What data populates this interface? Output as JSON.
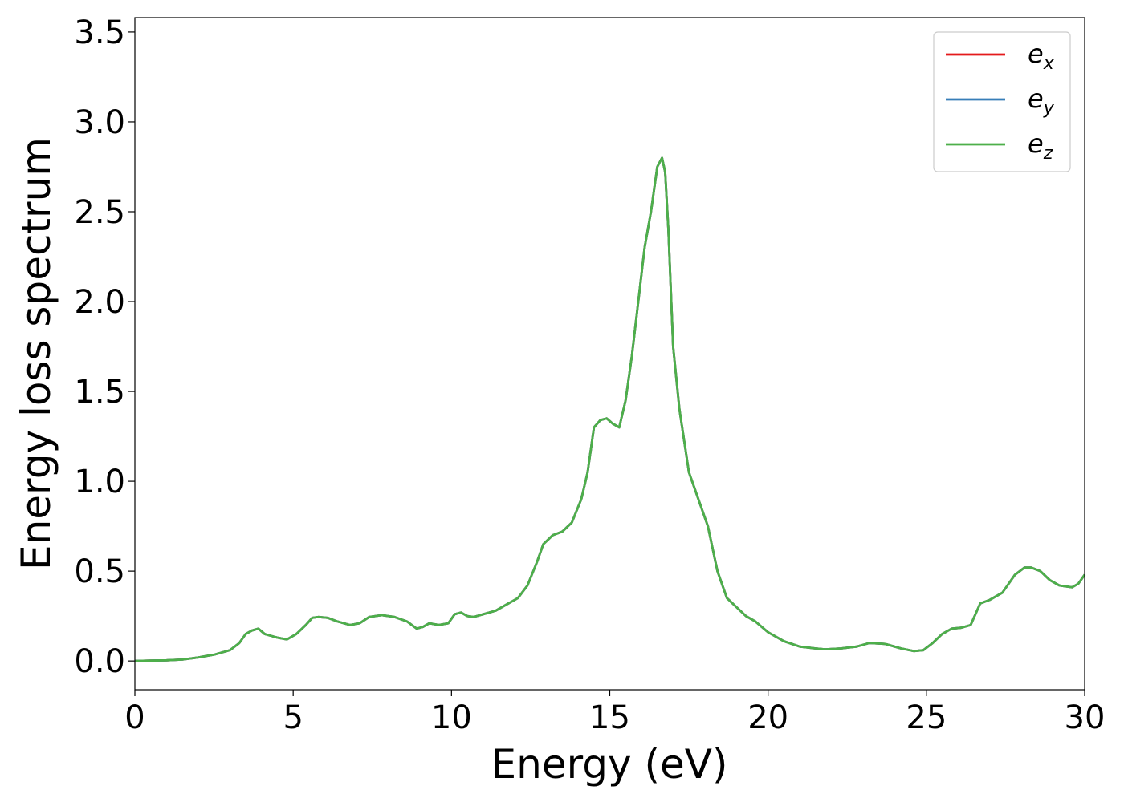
{
  "chart_data": {
    "type": "line",
    "xlabel": "Energy (eV)",
    "ylabel": "Energy loss spectrum",
    "xlim": [
      0,
      30
    ],
    "ylim": [
      -0.16,
      3.58
    ],
    "xticks": [
      "0",
      "5",
      "10",
      "15",
      "20",
      "25",
      "30"
    ],
    "yticks": [
      "0.0",
      "0.5",
      "1.0",
      "1.5",
      "2.0",
      "2.5",
      "3.0",
      "3.5"
    ],
    "grid": false,
    "legend_position": "top-right",
    "x": [
      0,
      0.5,
      1,
      1.5,
      2,
      2.5,
      3,
      3.3,
      3.5,
      3.7,
      3.9,
      4.1,
      4.3,
      4.5,
      4.8,
      5.1,
      5.4,
      5.6,
      5.8,
      6.1,
      6.4,
      6.8,
      7.1,
      7.4,
      7.8,
      8.2,
      8.6,
      8.9,
      9.1,
      9.3,
      9.6,
      9.9,
      10.1,
      10.3,
      10.5,
      10.7,
      11.0,
      11.4,
      11.8,
      12.1,
      12.4,
      12.7,
      12.9,
      13.2,
      13.5,
      13.8,
      14.1,
      14.3,
      14.5,
      14.7,
      14.9,
      15.1,
      15.3,
      15.5,
      15.7,
      15.9,
      16.1,
      16.3,
      16.5,
      16.65,
      16.75,
      16.85,
      17.0,
      17.2,
      17.5,
      17.8,
      18.1,
      18.4,
      18.7,
      19.0,
      19.3,
      19.6,
      20.0,
      20.5,
      21.0,
      21.5,
      21.8,
      22.3,
      22.8,
      23.2,
      23.7,
      24.2,
      24.6,
      24.9,
      25.2,
      25.5,
      25.8,
      26.1,
      26.4,
      26.7,
      27.0,
      27.4,
      27.8,
      28.1,
      28.3,
      28.6,
      28.9,
      29.2,
      29.6,
      29.8,
      30.0
    ],
    "series": [
      {
        "name": "e_x",
        "color": "#e41a1c",
        "values": [
          0.0,
          0.002,
          0.004,
          0.008,
          0.02,
          0.035,
          0.06,
          0.1,
          0.15,
          0.17,
          0.18,
          0.15,
          0.14,
          0.13,
          0.12,
          0.15,
          0.2,
          0.24,
          0.245,
          0.24,
          0.22,
          0.2,
          0.21,
          0.245,
          0.255,
          0.245,
          0.22,
          0.18,
          0.19,
          0.21,
          0.2,
          0.21,
          0.26,
          0.27,
          0.25,
          0.245,
          0.26,
          0.28,
          0.32,
          0.35,
          0.42,
          0.55,
          0.65,
          0.7,
          0.72,
          0.77,
          0.9,
          1.05,
          1.3,
          1.34,
          1.35,
          1.32,
          1.3,
          1.45,
          1.7,
          2.0,
          2.3,
          2.5,
          2.75,
          2.8,
          2.72,
          2.4,
          1.75,
          1.4,
          1.05,
          0.9,
          0.75,
          0.5,
          0.35,
          0.3,
          0.25,
          0.22,
          0.16,
          0.11,
          0.08,
          0.07,
          0.065,
          0.07,
          0.08,
          0.1,
          0.095,
          0.07,
          0.055,
          0.06,
          0.1,
          0.15,
          0.18,
          0.185,
          0.2,
          0.32,
          0.34,
          0.38,
          0.48,
          0.52,
          0.52,
          0.5,
          0.45,
          0.42,
          0.41,
          0.43,
          0.48
        ]
      },
      {
        "name": "e_y",
        "color": "#377eb8",
        "values": [
          0.0,
          0.002,
          0.004,
          0.008,
          0.02,
          0.035,
          0.06,
          0.1,
          0.15,
          0.17,
          0.18,
          0.15,
          0.14,
          0.13,
          0.12,
          0.15,
          0.2,
          0.24,
          0.245,
          0.24,
          0.22,
          0.2,
          0.21,
          0.245,
          0.255,
          0.245,
          0.22,
          0.18,
          0.19,
          0.21,
          0.2,
          0.21,
          0.26,
          0.27,
          0.25,
          0.245,
          0.26,
          0.28,
          0.32,
          0.35,
          0.42,
          0.55,
          0.65,
          0.7,
          0.72,
          0.77,
          0.9,
          1.05,
          1.3,
          1.34,
          1.35,
          1.32,
          1.3,
          1.45,
          1.7,
          2.0,
          2.3,
          2.5,
          2.75,
          2.8,
          2.72,
          2.4,
          1.75,
          1.4,
          1.05,
          0.9,
          0.75,
          0.5,
          0.35,
          0.3,
          0.25,
          0.22,
          0.16,
          0.11,
          0.08,
          0.07,
          0.065,
          0.07,
          0.08,
          0.1,
          0.095,
          0.07,
          0.055,
          0.06,
          0.1,
          0.15,
          0.18,
          0.185,
          0.2,
          0.32,
          0.34,
          0.38,
          0.48,
          0.52,
          0.52,
          0.5,
          0.45,
          0.42,
          0.41,
          0.43,
          0.48
        ]
      },
      {
        "name": "e_z",
        "color": "#4daf4a",
        "values": [
          0.0,
          0.002,
          0.004,
          0.008,
          0.02,
          0.035,
          0.06,
          0.1,
          0.15,
          0.17,
          0.18,
          0.15,
          0.14,
          0.13,
          0.12,
          0.15,
          0.2,
          0.24,
          0.245,
          0.24,
          0.22,
          0.2,
          0.21,
          0.245,
          0.255,
          0.245,
          0.22,
          0.18,
          0.19,
          0.21,
          0.2,
          0.21,
          0.26,
          0.27,
          0.25,
          0.245,
          0.26,
          0.28,
          0.32,
          0.35,
          0.42,
          0.55,
          0.65,
          0.7,
          0.72,
          0.77,
          0.9,
          1.05,
          1.3,
          1.34,
          1.35,
          1.32,
          1.3,
          1.45,
          1.7,
          2.0,
          2.3,
          2.5,
          2.75,
          2.8,
          2.72,
          2.4,
          1.75,
          1.4,
          1.05,
          0.9,
          0.75,
          0.5,
          0.35,
          0.3,
          0.25,
          0.22,
          0.16,
          0.11,
          0.08,
          0.07,
          0.065,
          0.07,
          0.08,
          0.1,
          0.095,
          0.07,
          0.055,
          0.06,
          0.1,
          0.15,
          0.18,
          0.185,
          0.2,
          0.32,
          0.34,
          0.38,
          0.48,
          0.52,
          0.52,
          0.5,
          0.45,
          0.42,
          0.41,
          0.43,
          0.48
        ]
      }
    ],
    "legend": [
      {
        "base": "e",
        "sub": "x",
        "color": "#e41a1c"
      },
      {
        "base": "e",
        "sub": "y",
        "color": "#377eb8"
      },
      {
        "base": "e",
        "sub": "z",
        "color": "#4daf4a"
      }
    ]
  }
}
